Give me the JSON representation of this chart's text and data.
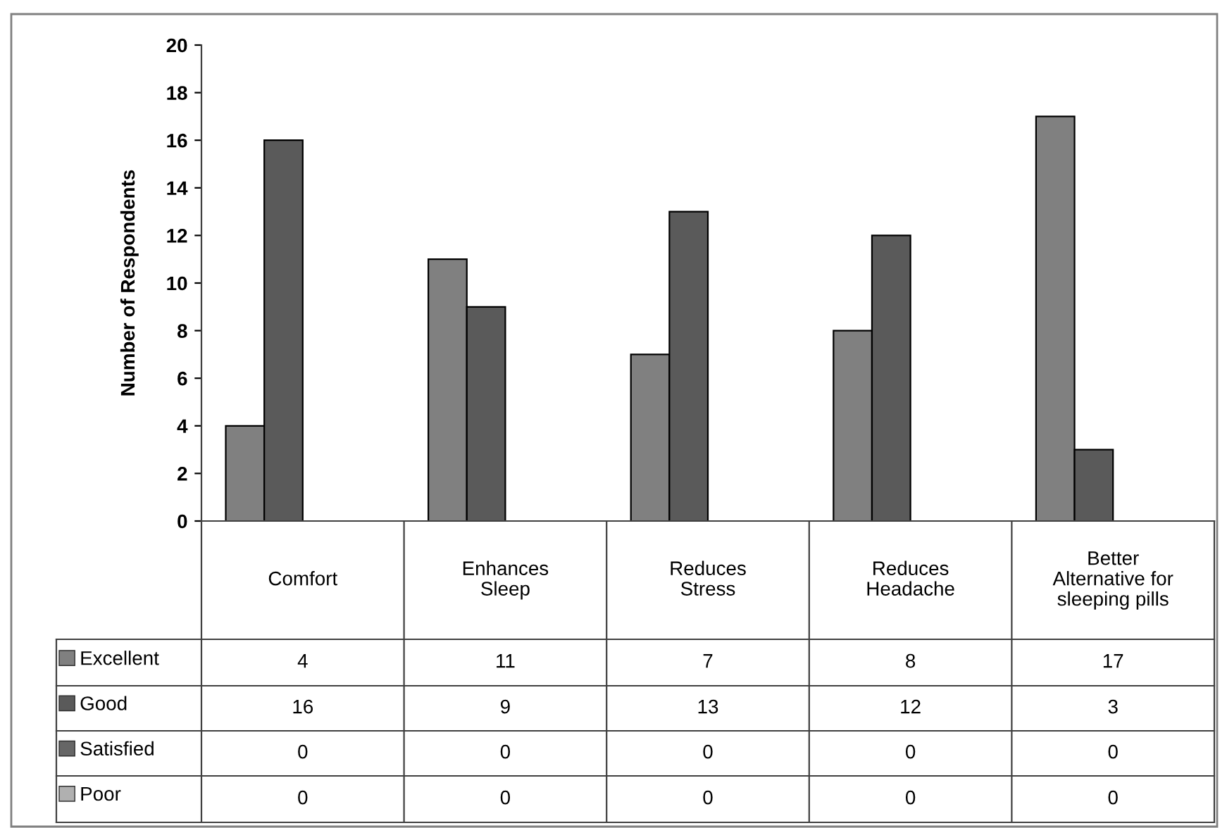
{
  "chart_data": {
    "type": "bar",
    "ylabel": "Number of Respondents",
    "categories": [
      "Comfort",
      "Enhances\nSleep",
      "Reduces\nStress",
      "Reduces\nHeadache",
      "Better\nAlternative for\nsleeping pills"
    ],
    "series": [
      {
        "name": "Excellent",
        "color": "#808080",
        "values": [
          4,
          11,
          7,
          8,
          17
        ]
      },
      {
        "name": "Good",
        "color": "#5a5a5a",
        "values": [
          16,
          9,
          13,
          12,
          3
        ]
      },
      {
        "name": "Satisfied",
        "color": "#666666",
        "values": [
          0,
          0,
          0,
          0,
          0
        ]
      },
      {
        "name": "Poor",
        "color": "#b0b0b0",
        "values": [
          0,
          0,
          0,
          0,
          0
        ]
      }
    ],
    "ylim": [
      0,
      20
    ],
    "yticks": [
      0,
      2,
      4,
      6,
      8,
      10,
      12,
      14,
      16,
      18,
      20
    ],
    "data_labels": true,
    "grid": false,
    "legend": "bottom left"
  }
}
